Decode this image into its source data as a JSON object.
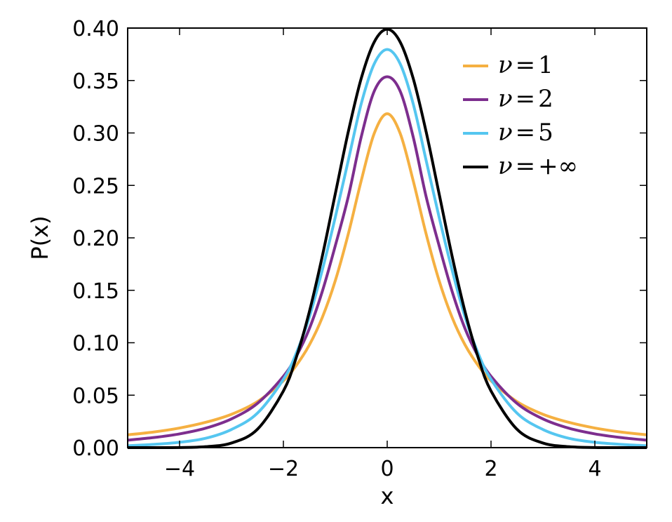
{
  "chart_data": {
    "type": "line",
    "title": "",
    "xlabel": "x",
    "ylabel": "P(x)",
    "xlim": [
      -5,
      5
    ],
    "ylim": [
      0,
      0.4
    ],
    "x_ticks": [
      -4,
      -2,
      0,
      2,
      4
    ],
    "x_tick_labels": [
      "−4",
      "−2",
      "0",
      "2",
      "4"
    ],
    "y_ticks": [
      0,
      0.05,
      0.1,
      0.15,
      0.2,
      0.25,
      0.3,
      0.35,
      0.4
    ],
    "y_tick_labels": [
      "0.00",
      "0.05",
      "0.10",
      "0.15",
      "0.20",
      "0.25",
      "0.30",
      "0.35",
      "0.40"
    ],
    "grid": false,
    "legend_position": "top-right",
    "x": [
      -5,
      -4.5,
      -4,
      -3.5,
      -3,
      -2.5,
      -2,
      -1.75,
      -1.5,
      -1.25,
      -1,
      -0.75,
      -0.5,
      -0.25,
      0,
      0.25,
      0.5,
      0.75,
      1,
      1.25,
      1.5,
      1.75,
      2,
      2.5,
      3,
      3.5,
      4,
      4.5,
      5
    ],
    "series": [
      {
        "name": "ν = 1",
        "legend_parts": [
          "ν",
          "=",
          "1"
        ],
        "color": "#f5b041",
        "values": [
          0.0122,
          0.0149,
          0.0187,
          0.0241,
          0.0318,
          0.0439,
          0.0637,
          0.0785,
          0.0979,
          0.1242,
          0.1592,
          0.2037,
          0.2546,
          0.2996,
          0.3183,
          0.2996,
          0.2546,
          0.2037,
          0.1592,
          0.1242,
          0.0979,
          0.0785,
          0.0637,
          0.0439,
          0.0318,
          0.0241,
          0.0187,
          0.0149,
          0.0122
        ]
      },
      {
        "name": "ν = 2",
        "legend_parts": [
          "ν",
          "=",
          "2"
        ],
        "color": "#7d2e8e",
        "values": [
          0.0071,
          0.0096,
          0.0131,
          0.0185,
          0.0274,
          0.0422,
          0.068,
          0.0873,
          0.1134,
          0.149,
          0.1925,
          0.2392,
          0.2963,
          0.3398,
          0.3536,
          0.3398,
          0.2963,
          0.2392,
          0.1925,
          0.149,
          0.1134,
          0.0873,
          0.068,
          0.0422,
          0.0274,
          0.0185,
          0.0131,
          0.0096,
          0.0071
        ]
      },
      {
        "name": "ν = 5",
        "legend_parts": [
          "ν",
          "=",
          "5"
        ],
        "color": "#55c6f0",
        "values": [
          0.0018,
          0.0031,
          0.0051,
          0.0089,
          0.0173,
          0.0329,
          0.0651,
          0.0902,
          0.1245,
          0.1694,
          0.2197,
          0.2738,
          0.3279,
          0.3659,
          0.3796,
          0.3659,
          0.3279,
          0.2738,
          0.2197,
          0.1694,
          0.1245,
          0.0902,
          0.0651,
          0.0329,
          0.0173,
          0.0089,
          0.0051,
          0.0031,
          0.0018
        ]
      },
      {
        "name": "ν = +∞",
        "legend_parts": [
          "ν",
          "=",
          "+∞"
        ],
        "color": "#000000",
        "values": [
          0.0,
          0.0,
          0.0001,
          0.0009,
          0.0044,
          0.0175,
          0.054,
          0.0863,
          0.1295,
          0.1826,
          0.242,
          0.3011,
          0.3521,
          0.3867,
          0.3989,
          0.3867,
          0.3521,
          0.3011,
          0.242,
          0.1826,
          0.1295,
          0.0863,
          0.054,
          0.0175,
          0.0044,
          0.0009,
          0.0001,
          0.0,
          0.0
        ]
      }
    ]
  }
}
